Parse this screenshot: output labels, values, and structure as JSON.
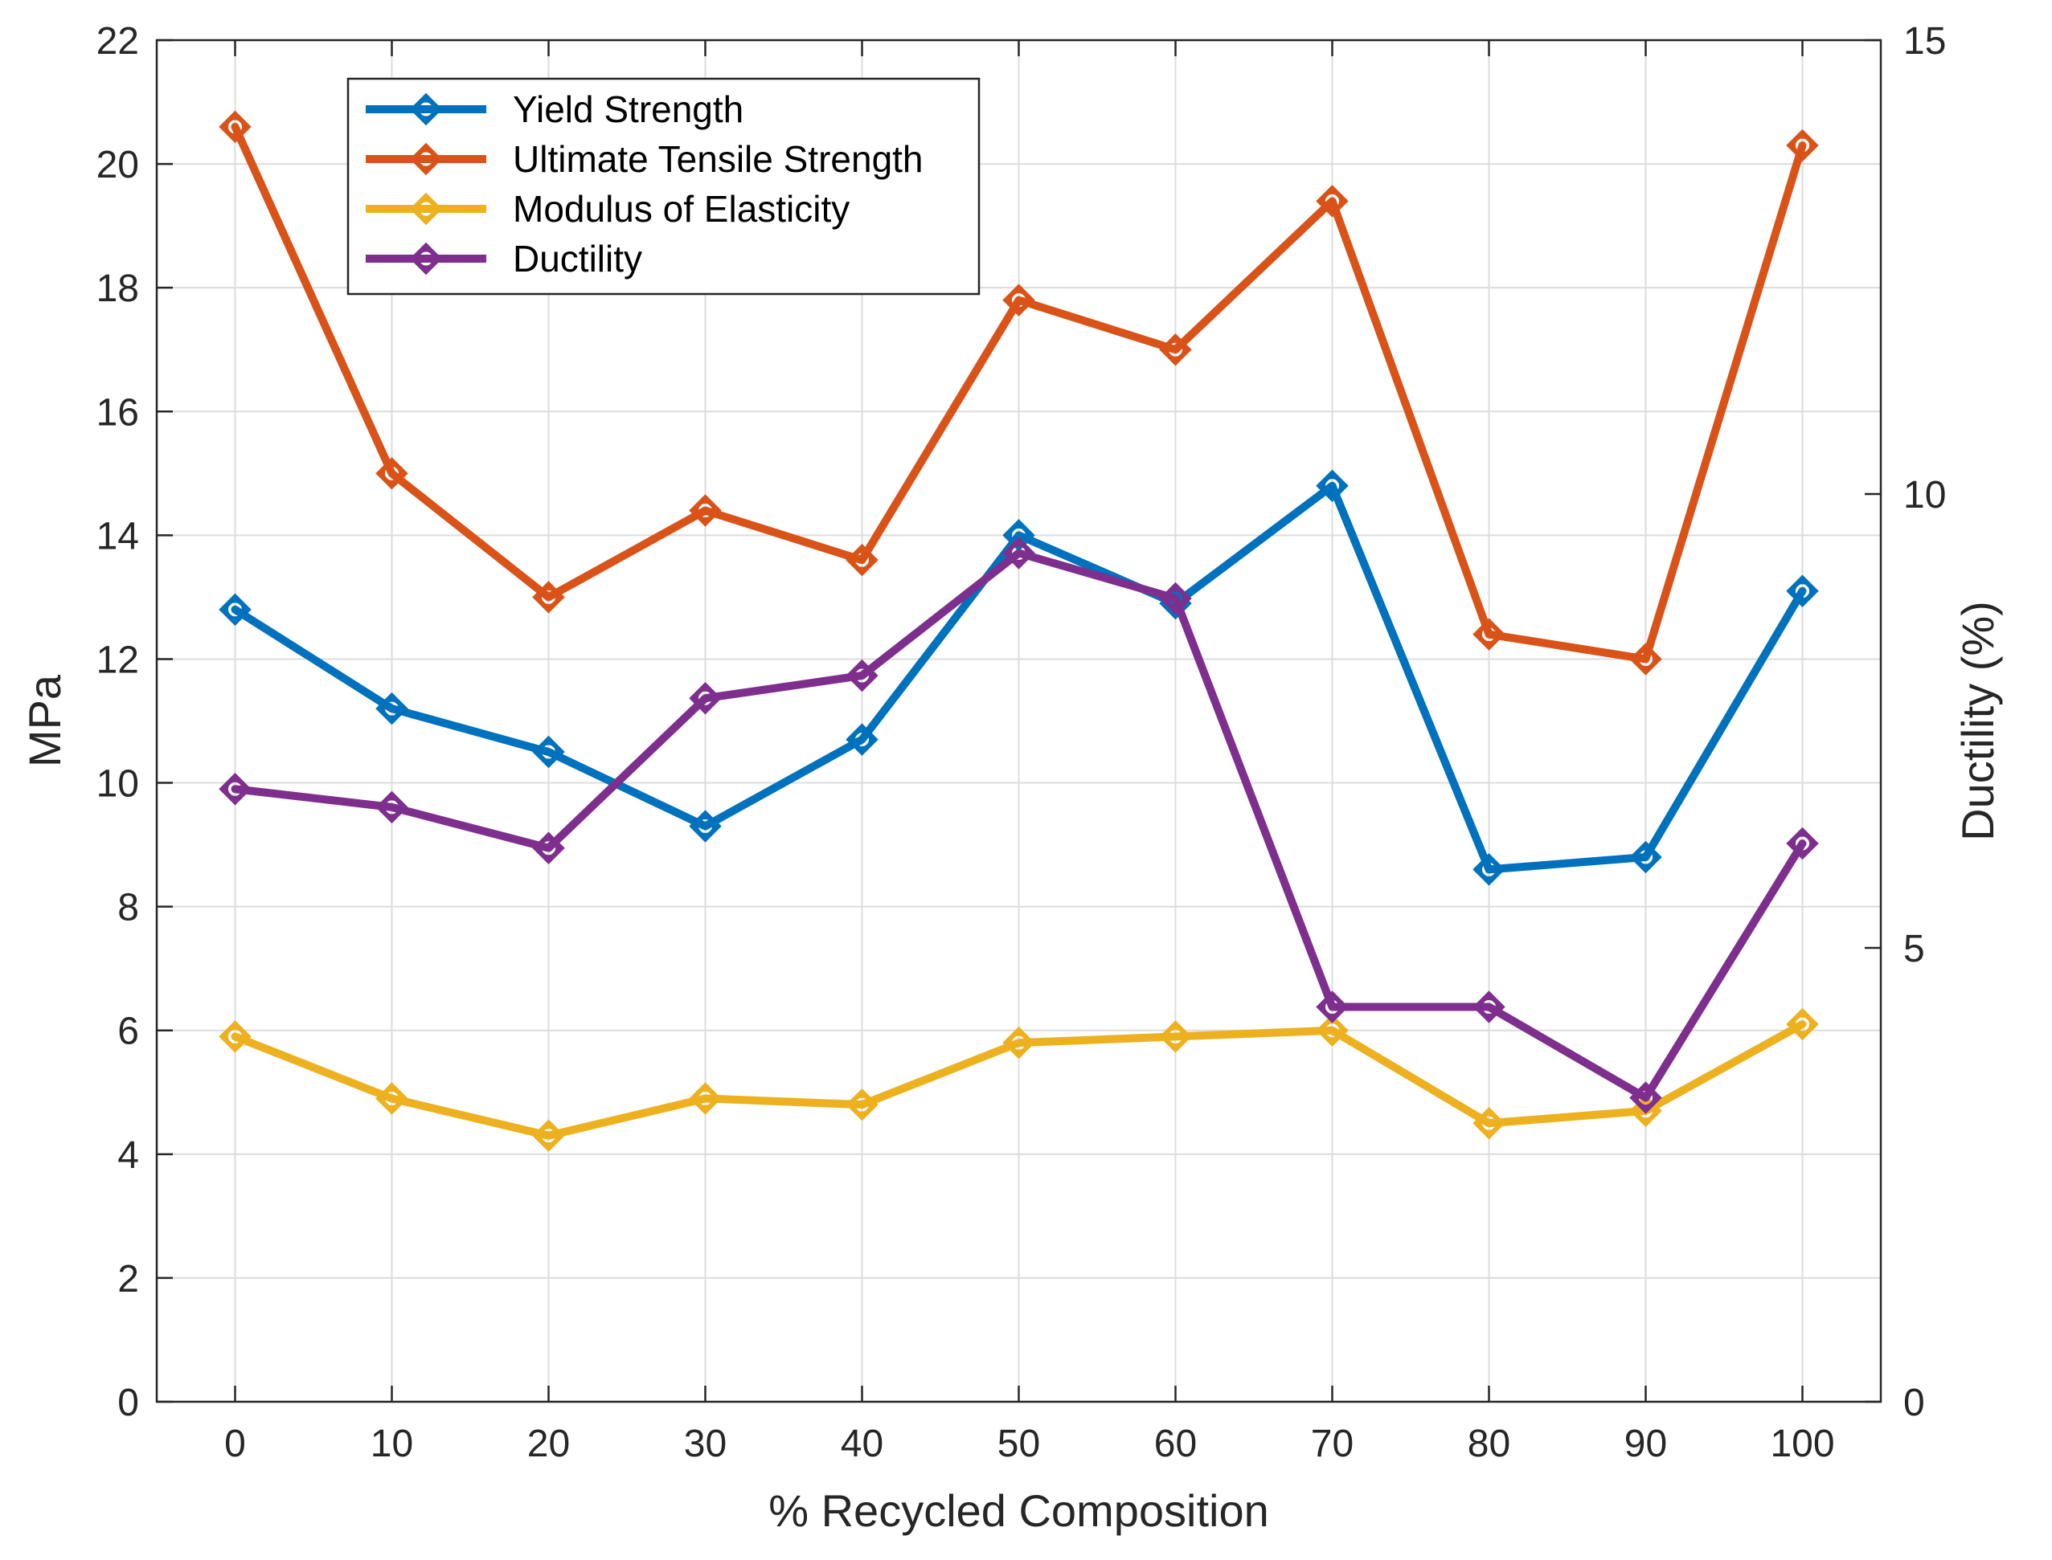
{
  "chart_data": {
    "type": "line",
    "title": "",
    "xlabel": "% Recycled Composition",
    "ylabel": "MPa",
    "y2label": "Ductility (%)",
    "x": [
      0,
      10,
      20,
      30,
      40,
      50,
      60,
      70,
      80,
      90,
      100
    ],
    "xlim": [
      -5,
      105
    ],
    "ylim": [
      0,
      22
    ],
    "y2lim": [
      0,
      15
    ],
    "xticks": [
      0,
      10,
      20,
      30,
      40,
      50,
      60,
      70,
      80,
      90,
      100
    ],
    "yticks": [
      0,
      2,
      4,
      6,
      8,
      10,
      12,
      14,
      16,
      18,
      20,
      22
    ],
    "y2ticks": [
      0,
      5,
      10,
      15
    ],
    "grid": true,
    "legend_position": "top-left",
    "series": [
      {
        "name": "Yield Strength",
        "axis": "left",
        "color": "#0072BD",
        "values": [
          12.8,
          11.2,
          10.5,
          9.3,
          10.7,
          14.0,
          12.9,
          14.8,
          8.6,
          8.8,
          13.1
        ]
      },
      {
        "name": "Ultimate Tensile Strength",
        "axis": "left",
        "color": "#D95319",
        "values": [
          20.6,
          15.0,
          13.0,
          14.4,
          13.6,
          17.8,
          17.0,
          19.4,
          12.4,
          12.0,
          20.3
        ]
      },
      {
        "name": "Modulus of Elasticity",
        "axis": "left",
        "color": "#EDB120",
        "values": [
          5.9,
          4.9,
          4.3,
          4.9,
          4.8,
          5.8,
          5.9,
          6.0,
          4.5,
          4.7,
          6.1
        ]
      },
      {
        "name": "Ductility",
        "axis": "right",
        "color": "#7E2F8E",
        "values": [
          6.75,
          6.55,
          6.1,
          7.75,
          8.0,
          9.35,
          8.85,
          4.35,
          4.35,
          3.35,
          6.15
        ]
      }
    ]
  }
}
